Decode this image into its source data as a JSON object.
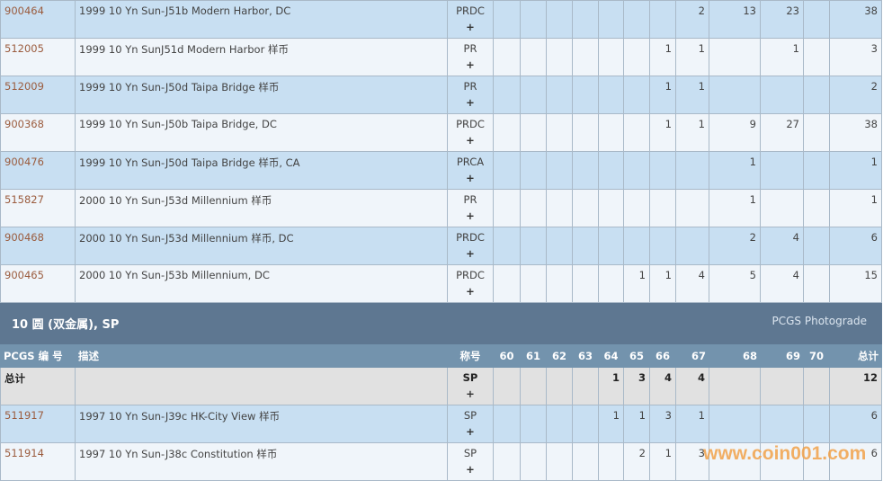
{
  "grades": [
    "60",
    "61",
    "62",
    "63",
    "64",
    "65",
    "66",
    "67",
    "68",
    "69",
    "70"
  ],
  "top_rows": [
    {
      "code": "900464",
      "desc": "1999 10 Yn Sun-J51b Modern Harbor, DC",
      "designation": "PRDC",
      "counts": {
        "67": "2",
        "68": "13",
        "69": "23"
      },
      "total": "38"
    },
    {
      "code": "512005",
      "desc": "1999 10 Yn SunJ51d Modern Harbor 样币",
      "designation": "PR",
      "counts": {
        "66": "1",
        "67": "1",
        "69": "1"
      },
      "total": "3"
    },
    {
      "code": "512009",
      "desc": "1999 10 Yn Sun-J50d Taipa Bridge 样币",
      "designation": "PR",
      "counts": {
        "66": "1",
        "67": "1"
      },
      "total": "2"
    },
    {
      "code": "900368",
      "desc": "1999 10 Yn Sun-J50b Taipa Bridge, DC",
      "designation": "PRDC",
      "counts": {
        "66": "1",
        "67": "1",
        "68": "9",
        "69": "27"
      },
      "total": "38"
    },
    {
      "code": "900476",
      "desc": "1999 10 Yn Sun-J50d Taipa Bridge 样币, CA",
      "designation": "PRCA",
      "counts": {
        "68": "1"
      },
      "total": "1"
    },
    {
      "code": "515827",
      "desc": "2000 10 Yn Sun-J53d Millennium 样币",
      "designation": "PR",
      "counts": {
        "68": "1"
      },
      "total": "1"
    },
    {
      "code": "900468",
      "desc": "2000 10 Yn Sun-J53d Millennium 样币, DC",
      "designation": "PRDC",
      "counts": {
        "68": "2",
        "69": "4"
      },
      "total": "6"
    },
    {
      "code": "900465",
      "desc": "2000 10 Yn Sun-J53b Millennium, DC",
      "designation": "PRDC",
      "counts": {
        "65": "1",
        "66": "1",
        "67": "4",
        "68": "5",
        "69": "4"
      },
      "total": "15"
    }
  ],
  "plus": "+",
  "section": {
    "title": "10 圆 (双金属), SP",
    "photograde": "PCGS Photograde"
  },
  "headers": {
    "code": "PCGS 编 号",
    "desc": "描述",
    "designation": "称号",
    "total": "总计"
  },
  "total_row": {
    "label": "总计",
    "designation": "SP",
    "counts": {
      "64": "1",
      "65": "3",
      "66": "4",
      "67": "4"
    },
    "total": "12"
  },
  "sp_rows": [
    {
      "code": "511917",
      "desc": "1997 10 Yn Sun-J39c HK-City View 样币",
      "designation": "SP",
      "counts": {
        "64": "1",
        "65": "1",
        "66": "3",
        "67": "1"
      },
      "total": "6"
    },
    {
      "code": "511914",
      "desc": "1997 10 Yn Sun-J38c Constitution 样币",
      "designation": "SP",
      "counts": {
        "65": "2",
        "66": "1",
        "67": "3"
      },
      "total": "6"
    }
  ],
  "watermark": "www.coin001.com"
}
